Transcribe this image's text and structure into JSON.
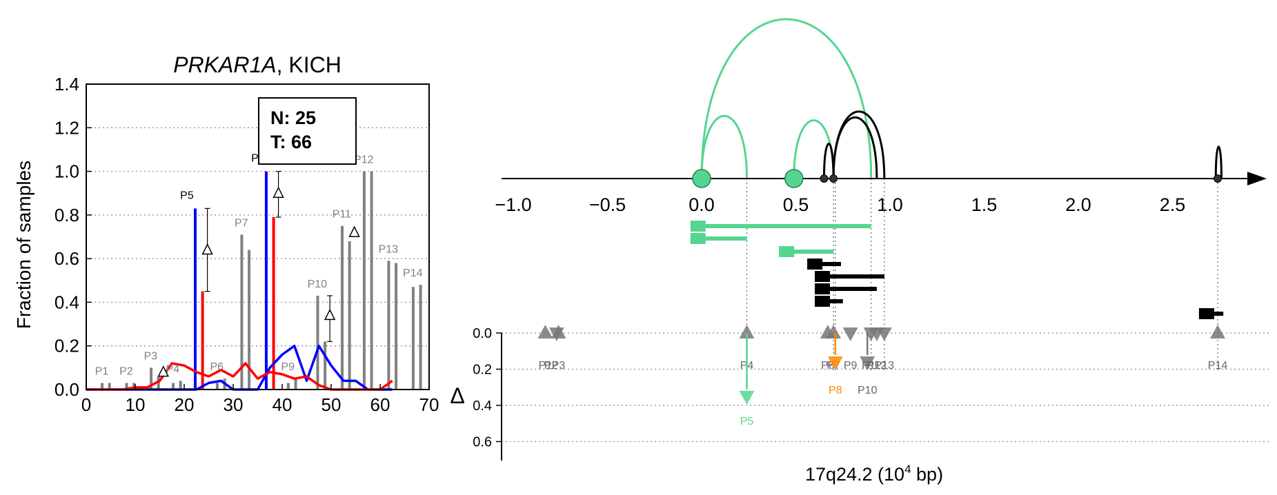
{
  "left_panel": {
    "title_gene": "PRKAR1A",
    "title_rest": ", KICH",
    "ylabel": "Fraction of samples",
    "legend": {
      "n_text": "N: 25",
      "t_text": "T: 66"
    }
  },
  "right_panel": {
    "xlabel_pre": "17q24.2 (10",
    "xlabel_sup": "4",
    "xlabel_post": " bp)",
    "delta_label": "Δ"
  },
  "colors": {
    "normal": "#0000ff",
    "tumor": "#ff0000",
    "peak_gray": "#808080",
    "green": "#55d68f",
    "orange": "#ff8800",
    "black": "#000000",
    "marker_gray": "#777777"
  },
  "chart_data": [
    {
      "type": "bar",
      "title": "PRKAR1A, KICH",
      "xlabel": "",
      "ylabel": "Fraction of samples",
      "xlim": [
        0,
        70
      ],
      "ylim": [
        0,
        1.4
      ],
      "xticks": [
        0,
        10,
        20,
        30,
        40,
        50,
        60,
        70
      ],
      "yticks": [
        0.0,
        0.2,
        0.4,
        0.6,
        0.8,
        1.0,
        1.2,
        1.4
      ],
      "grid": "horizontal dotted",
      "legend": {
        "N": 25,
        "T": 66,
        "placement": "top-center"
      },
      "peaks": [
        {
          "label": "P1",
          "normal": 0.03,
          "tumor": 0.03,
          "delta_marker": false,
          "highlight": false
        },
        {
          "label": "P2",
          "normal": 0.03,
          "tumor": 0.03,
          "delta_marker": false,
          "highlight": false
        },
        {
          "label": "P3",
          "normal": 0.1,
          "tumor": 0.06,
          "delta_marker": true,
          "delta": 0.08,
          "highlight": false
        },
        {
          "label": "P4",
          "normal": 0.03,
          "tumor": 0.04,
          "delta_marker": false,
          "highlight": false
        },
        {
          "label": "P5",
          "normal": 0.83,
          "tumor": 0.45,
          "delta_marker": true,
          "delta": 0.64,
          "delta_err": [
            0.45,
            0.83
          ],
          "highlight": true
        },
        {
          "label": "P6",
          "normal": 0.03,
          "tumor": 0.05,
          "delta_marker": false,
          "highlight": false
        },
        {
          "label": "P7",
          "normal": 0.71,
          "tumor": 0.64,
          "delta_marker": false,
          "highlight": false
        },
        {
          "label": "P8",
          "normal": 1.0,
          "tumor": 0.79,
          "delta_marker": true,
          "delta": 0.9,
          "delta_err": [
            0.79,
            1.0
          ],
          "highlight": true
        },
        {
          "label": "P9",
          "normal": 0.03,
          "tumor": 0.05,
          "delta_marker": false,
          "highlight": false
        },
        {
          "label": "P10",
          "normal": 0.43,
          "tumor": 0.22,
          "delta_marker": true,
          "delta": 0.34,
          "delta_err": [
            0.22,
            0.43
          ],
          "highlight": false
        },
        {
          "label": "P11",
          "normal": 0.75,
          "tumor": 0.68,
          "delta_marker": true,
          "delta": 0.72,
          "highlight": false
        },
        {
          "label": "P12",
          "normal": 1.0,
          "tumor": 1.0,
          "delta_marker": false,
          "highlight": false
        },
        {
          "label": "P13",
          "normal": 0.59,
          "tumor": 0.58,
          "delta_marker": false,
          "highlight": false
        },
        {
          "label": "P14",
          "normal": 0.47,
          "tumor": 0.48,
          "delta_marker": false,
          "highlight": false
        }
      ],
      "series": [
        {
          "color": "#0000ff",
          "x": [
            0,
            2.5,
            5,
            7.5,
            10,
            12.5,
            15,
            17.5,
            20,
            22.5,
            25,
            27.5,
            30,
            32.5,
            35,
            37.5,
            40,
            42.5,
            45,
            47.5,
            50,
            52.5,
            55,
            57.5,
            60,
            62.5
          ],
          "y": [
            0,
            0,
            0,
            0,
            0,
            0,
            0,
            0,
            0,
            0,
            0.03,
            0.04,
            0,
            0,
            0,
            0.1,
            0.16,
            0.2,
            0.04,
            0.2,
            0.11,
            0.04,
            0.04,
            0,
            0,
            0
          ]
        },
        {
          "color": "#ff0000",
          "x": [
            0,
            2.5,
            5,
            7.5,
            10,
            12.5,
            15,
            17.5,
            20,
            22.5,
            25,
            27.5,
            30,
            32.5,
            35,
            37.5,
            40,
            42.5,
            45,
            47.5,
            50,
            52.5,
            55,
            57.5,
            60,
            62.5
          ],
          "y": [
            0,
            0,
            0,
            0,
            0.01,
            0.01,
            0.04,
            0.12,
            0.11,
            0.08,
            0.06,
            0.09,
            0.06,
            0.12,
            0.05,
            0.08,
            0.07,
            0.05,
            0.06,
            0.02,
            0,
            0,
            0,
            0,
            0,
            0.04
          ]
        }
      ]
    },
    {
      "type": "scatter",
      "xlabel": "17q24.2 (10^4 bp)",
      "xlim": [
        -1.1,
        3.0
      ],
      "xticks": [
        -1.0,
        -0.5,
        0.0,
        0.5,
        1.0,
        1.5,
        2.0,
        2.5
      ],
      "ylabel": "Δ",
      "yticks": [
        0.0,
        0.2,
        0.4,
        0.6
      ],
      "grid": "horizontal dotted",
      "peaks": [
        {
          "label": "P1",
          "x": -0.83,
          "delta": 0.0,
          "direction": "up",
          "color": "#777777"
        },
        {
          "label": "P2",
          "x": -0.77,
          "delta": 0.0,
          "direction": "down",
          "color": "#777777"
        },
        {
          "label": "P3",
          "x": -0.76,
          "delta": 0.0,
          "direction": "up",
          "color": "#777777"
        },
        {
          "label": "P4",
          "x": 0.24,
          "delta": 0.0,
          "direction": "up",
          "color": "#777777"
        },
        {
          "label": "P5",
          "x": 0.24,
          "delta": 0.35,
          "direction": "down",
          "color": "#55d68f"
        },
        {
          "label": "P6",
          "x": 0.67,
          "delta": 0.0,
          "direction": "up",
          "color": "#777777"
        },
        {
          "label": "P7",
          "x": 0.7,
          "delta": 0.0,
          "direction": "up",
          "color": "#777777"
        },
        {
          "label": "P8",
          "x": 0.71,
          "delta": 0.16,
          "direction": "down",
          "color": "#ff8800"
        },
        {
          "label": "P9",
          "x": 0.79,
          "delta": 0.0,
          "direction": "down",
          "color": "#777777"
        },
        {
          "label": "P10",
          "x": 0.88,
          "delta": 0.16,
          "direction": "down",
          "color": "#777777"
        },
        {
          "label": "P11",
          "x": 0.9,
          "delta": 0.0,
          "direction": "down",
          "color": "#777777"
        },
        {
          "label": "P12",
          "x": 0.93,
          "delta": 0.0,
          "direction": "down",
          "color": "#777777"
        },
        {
          "label": "P13",
          "x": 0.97,
          "delta": 0.0,
          "direction": "down",
          "color": "#777777"
        },
        {
          "label": "P14",
          "x": 2.74,
          "delta": 0.0,
          "direction": "up",
          "color": "#777777"
        }
      ],
      "loops": [
        {
          "from": 0.0,
          "to": 0.24,
          "color": "#55d68f"
        },
        {
          "from": 0.0,
          "to": 0.9,
          "color": "#55d68f"
        },
        {
          "from": 0.49,
          "to": 0.7,
          "color": "#55d68f"
        },
        {
          "from": 0.65,
          "to": 0.7,
          "color": "#000000"
        },
        {
          "from": 0.7,
          "to": 0.93,
          "color": "#000000"
        },
        {
          "from": 0.7,
          "to": 0.97,
          "color": "#000000"
        },
        {
          "from": 2.73,
          "to": 2.76,
          "color": "#000000"
        }
      ],
      "anchors": [
        {
          "x": 0.0,
          "color": "#55d68f",
          "large": true
        },
        {
          "x": 0.49,
          "color": "#55d68f",
          "large": true
        },
        {
          "x": 0.65,
          "color": "#333333",
          "large": false
        },
        {
          "x": 0.7,
          "color": "#333333",
          "large": false
        },
        {
          "x": 2.74,
          "color": "#333333",
          "large": false
        }
      ],
      "tracks": [
        {
          "start": -0.03,
          "end": 0.9,
          "row": 0,
          "color": "#55d68f"
        },
        {
          "start": -0.03,
          "end": 0.24,
          "row": 1,
          "color": "#55d68f"
        },
        {
          "start": 0.44,
          "end": 0.7,
          "row": 2,
          "color": "#55d68f"
        },
        {
          "start": 0.59,
          "end": 0.74,
          "row": 3,
          "color": "#000000"
        },
        {
          "start": 0.63,
          "end": 0.97,
          "row": 4,
          "color": "#000000"
        },
        {
          "start": 0.63,
          "end": 0.93,
          "row": 5,
          "color": "#000000"
        },
        {
          "start": 0.63,
          "end": 0.75,
          "row": 6,
          "color": "#000000"
        },
        {
          "start": 2.67,
          "end": 2.77,
          "row": 7,
          "color": "#000000"
        }
      ],
      "guide_lines_x": [
        0.24,
        0.7,
        0.71,
        0.9,
        0.97,
        2.74
      ]
    }
  ]
}
